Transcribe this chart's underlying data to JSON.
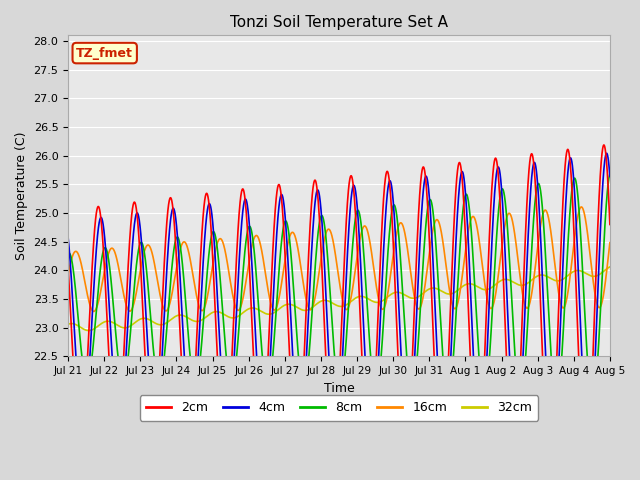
{
  "title": "Tonzi Soil Temperature Set A",
  "xlabel": "Time",
  "ylabel": "Soil Temperature (C)",
  "ylim": [
    22.5,
    28.1
  ],
  "xlim": [
    0,
    360
  ],
  "fig_facecolor": "#d8d8d8",
  "axes_facecolor": "#e8e8e8",
  "grid_color": "white",
  "label_box_text": "TZ_fmet",
  "label_box_facecolor": "#ffffcc",
  "label_box_edgecolor": "#cc2200",
  "series": {
    "2cm": {
      "color": "#ff0000",
      "label": "2cm"
    },
    "4cm": {
      "color": "#0000dd",
      "label": "4cm"
    },
    "8cm": {
      "color": "#00bb00",
      "label": "8cm"
    },
    "16cm": {
      "color": "#ff8800",
      "label": "16cm"
    },
    "32cm": {
      "color": "#cccc00",
      "label": "32cm"
    }
  },
  "xtick_labels": [
    "Jul 21",
    "Jul 22",
    "Jul 23",
    "Jul 24",
    "Jul 25",
    "Jul 26",
    "Jul 27",
    "Jul 28",
    "Jul 29",
    "Jul 30",
    "Jul 31",
    "Aug 1",
    "Aug 2",
    "Aug 3",
    "Aug 4",
    "Aug 5"
  ],
  "ytick_positions": [
    22.5,
    23.0,
    23.5,
    24.0,
    24.5,
    25.0,
    25.5,
    26.0,
    26.5,
    27.0,
    27.5,
    28.0
  ],
  "line_width": 1.2,
  "params": {
    "2cm": {
      "base_start": 23.05,
      "base_end": 23.4,
      "amp_start": 2.0,
      "amp_end": 2.8,
      "phase_hr": 0.0
    },
    "4cm": {
      "base_start": 23.1,
      "base_end": 23.5,
      "amp_start": 1.75,
      "amp_end": 2.55,
      "phase_hr": 1.8
    },
    "8cm": {
      "base_start": 23.2,
      "base_end": 23.7,
      "amp_start": 1.1,
      "amp_end": 2.0,
      "phase_hr": 4.5
    },
    "16cm": {
      "base_start": 23.8,
      "base_end": 24.25,
      "amp_start": 0.52,
      "amp_end": 0.9,
      "phase_hr": 9.0
    },
    "32cm": {
      "base_start": 23.0,
      "base_end": 24.0,
      "amp_start": 0.0,
      "amp_end": 0.0,
      "phase_hr": 0.0
    }
  }
}
